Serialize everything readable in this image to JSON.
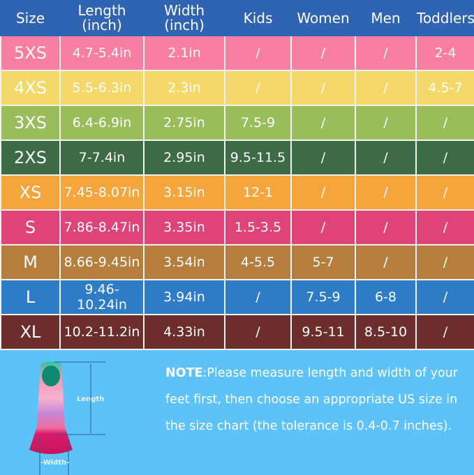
{
  "headers": [
    "Size",
    "Length\n(inch)",
    "Width\n(inch)",
    "Kids",
    "Women",
    "Men",
    "Toddlers"
  ],
  "header_color": "#2f64b3",
  "rows": [
    {
      "color": "#f97ea4",
      "cells": [
        "5XS",
        "4.7-5.4in",
        "2.1in",
        "/",
        "/",
        "/",
        "2-4"
      ]
    },
    {
      "color": "#f5d86a",
      "cells": [
        "4XS",
        "5.5-6.3in",
        "2.3in",
        "/",
        "/",
        "/",
        "4.5-7"
      ]
    },
    {
      "color": "#98bd5a",
      "cells": [
        "3XS",
        "6.4-6.9in",
        "2.75in",
        "7.5-9",
        "/",
        "/",
        "/"
      ]
    },
    {
      "color": "#3d6b45",
      "cells": [
        "2XS",
        "7-7.4in",
        "2.95in",
        "9.5-11.5",
        "/",
        "/",
        "/"
      ]
    },
    {
      "color": "#f4a53c",
      "cells": [
        "XS",
        "7.45-8.07in",
        "3.15in",
        "12-1",
        "/",
        "/",
        "/"
      ]
    },
    {
      "color": "#df4479",
      "cells": [
        "S",
        "7.86-8.47in",
        "3.35in",
        "1.5-3.5",
        "/",
        "/",
        "/"
      ]
    },
    {
      "color": "#b57e3e",
      "cells": [
        "M",
        "8.66-9.45in",
        "3.54in",
        "4-5.5",
        "5-7",
        "/",
        "/"
      ]
    },
    {
      "color": "#2e7cc5",
      "cells": [
        "L",
        "9.46-10.24in",
        "3.94in",
        "/",
        "7.5-9",
        "6-8",
        "/"
      ]
    },
    {
      "color": "#6b2e2c",
      "cells": [
        "XL",
        "10.2-11.2in",
        "4.33in",
        "/",
        "9.5-11",
        "8.5-10",
        "/"
      ]
    }
  ],
  "diagram": {
    "length_label": "Length",
    "width_label": "-Width-"
  },
  "note": {
    "bold": "NOTE",
    "text": ":Please measure length and width of your feet first, then choose an appropriate US size in the size chart (the tolerance is 0.4-0.7 inches)."
  },
  "background_color": "#5cc2f8"
}
